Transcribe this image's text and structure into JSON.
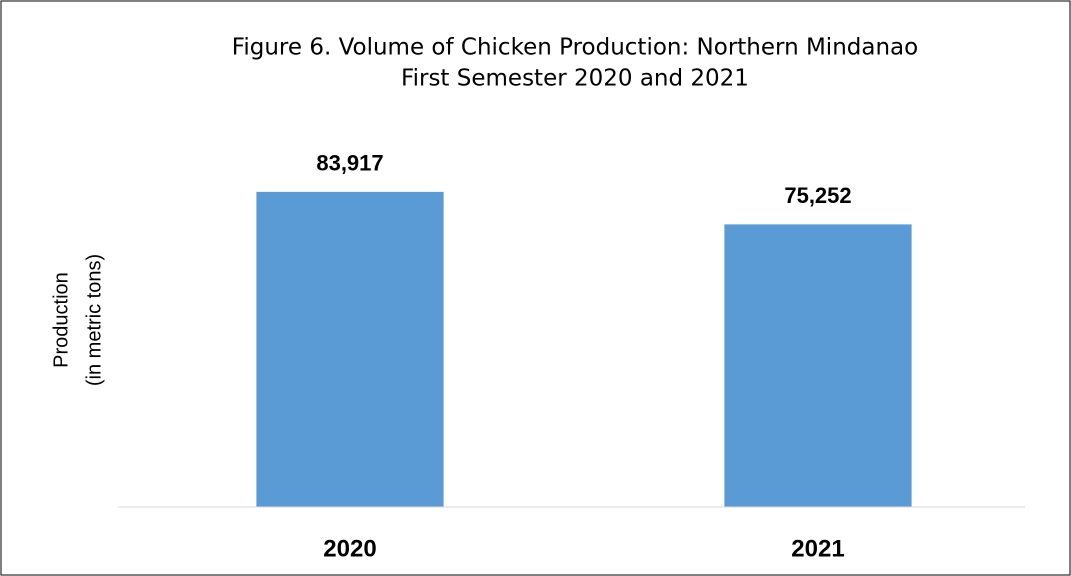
{
  "chart_data": {
    "type": "bar",
    "title": [
      "Figure 6. Volume of Chicken Production: Northern Mindanao",
      "First Semester 2020 and 2021"
    ],
    "y_label": [
      "Production",
      "(in metric tons)"
    ],
    "categories": [
      "2020",
      "2021"
    ],
    "values": [
      83917,
      75252
    ],
    "value_labels": [
      "83,917",
      "75,252"
    ],
    "color": "#5b9bd5",
    "ylim": [
      0,
      90000
    ]
  }
}
